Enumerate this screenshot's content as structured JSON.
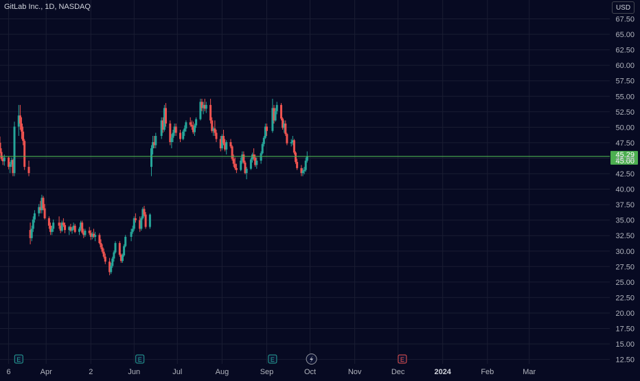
{
  "header": {
    "symbol_label": "GitLab Inc., 1D, NASDAQ"
  },
  "toolbar": {
    "currency_label": "USD"
  },
  "colors": {
    "background": "#070a22",
    "grid": "#1a1d33",
    "up": "#26a69a",
    "down": "#ef5350",
    "price_line": "#4caf50",
    "text": "#b2b5be",
    "earnings_marker": "#26a69a",
    "upcoming_earnings_marker": "#ef5350"
  },
  "chart_data": {
    "type": "candlestick",
    "y_axis": {
      "ticks": [
        "67.50",
        "65.00",
        "62.50",
        "60.00",
        "57.50",
        "55.00",
        "52.50",
        "50.00",
        "47.50",
        "45.00",
        "42.50",
        "40.00",
        "37.50",
        "35.00",
        "32.50",
        "30.00",
        "27.50",
        "25.00",
        "22.50",
        "20.00",
        "17.50",
        "15.00",
        "12.50"
      ],
      "range": [
        11.5,
        68.5
      ]
    },
    "x_axis": {
      "ticks": [
        "6",
        "Apr",
        "2",
        "Jun",
        "Jul",
        "Aug",
        "Sep",
        "Oct",
        "Nov",
        "Dec",
        "2024",
        "Feb",
        "Mar"
      ],
      "range": [
        "2023-02-28",
        "2024-03-25"
      ]
    },
    "price_labels": [
      "45.29",
      "45.00"
    ],
    "price_line_value": 45.29,
    "earnings_markers": [
      {
        "date": "2023-03-13",
        "label": "E"
      },
      {
        "date": "2023-06-05",
        "label": "E"
      },
      {
        "date": "2023-09-05",
        "label": "E"
      },
      {
        "date": "2023-12-04",
        "label": "E"
      }
    ],
    "dividend_marker": {
      "date": "2023-10-02",
      "icon": "lightning-icon"
    },
    "candles": [
      [
        "2023-02-28",
        47.5,
        48.5,
        45.8,
        46.0
      ],
      [
        "2023-03-01",
        46.0,
        46.6,
        44.6,
        44.9
      ],
      [
        "2023-03-02",
        44.9,
        45.4,
        43.9,
        44.5
      ],
      [
        "2023-03-03",
        44.5,
        45.6,
        43.8,
        45.1
      ],
      [
        "2023-03-06",
        45.1,
        45.3,
        43.2,
        43.6
      ],
      [
        "2023-03-07",
        43.6,
        44.4,
        42.6,
        44.0
      ],
      [
        "2023-03-08",
        44.0,
        45.1,
        43.6,
        44.7
      ],
      [
        "2023-03-09",
        44.7,
        44.9,
        42.1,
        42.6
      ],
      [
        "2023-03-10",
        42.6,
        50.9,
        42.1,
        50.1
      ],
      [
        "2023-03-13",
        50.1,
        53.6,
        48.6,
        51.9
      ],
      [
        "2023-03-14",
        51.9,
        53.6,
        49.6,
        50.6
      ],
      [
        "2023-03-15",
        50.6,
        51.6,
        48.1,
        49.3
      ],
      [
        "2023-03-16",
        49.3,
        50.1,
        47.1,
        47.8
      ],
      [
        "2023-03-17",
        47.8,
        48.1,
        43.1,
        43.6
      ],
      [
        "2023-03-20",
        43.6,
        44.6,
        42.1,
        42.6
      ],
      [
        "2023-03-21",
        33.4,
        34.6,
        31.1,
        32.1
      ],
      [
        "2023-03-22",
        32.1,
        34.1,
        31.6,
        33.6
      ],
      [
        "2023-03-23",
        33.6,
        35.6,
        33.1,
        35.1
      ],
      [
        "2023-03-24",
        35.1,
        36.6,
        34.6,
        36.1
      ],
      [
        "2023-03-27",
        36.1,
        37.6,
        35.6,
        37.1
      ],
      [
        "2023-03-28",
        37.1,
        38.1,
        36.1,
        36.6
      ],
      [
        "2023-03-29",
        36.6,
        39.1,
        36.1,
        38.6
      ],
      [
        "2023-03-30",
        38.6,
        38.9,
        36.6,
        36.9
      ],
      [
        "2023-03-31",
        36.9,
        37.6,
        35.1,
        35.3
      ],
      [
        "2023-04-03",
        35.3,
        35.6,
        33.6,
        34.1
      ],
      [
        "2023-04-04",
        34.1,
        34.6,
        32.6,
        33.1
      ],
      [
        "2023-04-05",
        33.1,
        34.1,
        32.6,
        33.6
      ],
      [
        "2023-04-06",
        33.6,
        35.1,
        33.1,
        34.6
      ],
      [
        "2023-04-10",
        34.6,
        35.6,
        33.6,
        34.1
      ],
      [
        "2023-04-11",
        34.1,
        34.6,
        32.9,
        33.3
      ],
      [
        "2023-04-12",
        33.3,
        34.9,
        33.1,
        34.6
      ],
      [
        "2023-04-13",
        34.6,
        35.3,
        33.9,
        34.2
      ],
      [
        "2023-04-14",
        34.2,
        34.6,
        32.9,
        33.4
      ],
      [
        "2023-04-17",
        33.4,
        34.1,
        32.6,
        33.9
      ],
      [
        "2023-04-18",
        33.9,
        34.4,
        33.1,
        33.3
      ],
      [
        "2023-04-19",
        33.3,
        33.9,
        32.8,
        33.6
      ],
      [
        "2023-04-20",
        33.6,
        34.6,
        33.4,
        34.1
      ],
      [
        "2023-04-21",
        34.1,
        34.4,
        32.9,
        33.1
      ],
      [
        "2023-04-24",
        33.1,
        33.9,
        32.6,
        33.6
      ],
      [
        "2023-04-25",
        33.6,
        34.9,
        33.3,
        34.6
      ],
      [
        "2023-04-26",
        34.6,
        34.9,
        32.8,
        33.0
      ],
      [
        "2023-04-27",
        33.0,
        33.6,
        32.1,
        32.6
      ],
      [
        "2023-04-28",
        32.6,
        33.6,
        32.3,
        33.3
      ],
      [
        "2023-05-01",
        33.3,
        33.9,
        32.6,
        32.9
      ],
      [
        "2023-05-02",
        32.9,
        33.4,
        31.8,
        32.3
      ],
      [
        "2023-05-03",
        32.3,
        33.1,
        31.9,
        32.8
      ],
      [
        "2023-05-04",
        32.8,
        33.6,
        32.1,
        32.3
      ],
      [
        "2023-05-05",
        32.3,
        33.1,
        31.6,
        32.6
      ],
      [
        "2023-05-08",
        32.6,
        32.9,
        31.1,
        31.3
      ],
      [
        "2023-05-09",
        31.3,
        31.9,
        30.3,
        30.6
      ],
      [
        "2023-05-10",
        30.6,
        31.1,
        29.6,
        29.9
      ],
      [
        "2023-05-11",
        29.9,
        30.4,
        28.8,
        29.1
      ],
      [
        "2023-05-12",
        29.1,
        29.6,
        27.9,
        28.3
      ],
      [
        "2023-05-15",
        28.3,
        28.9,
        26.1,
        26.6
      ],
      [
        "2023-05-16",
        26.6,
        28.1,
        26.3,
        27.6
      ],
      [
        "2023-05-17",
        27.6,
        29.1,
        27.3,
        28.8
      ],
      [
        "2023-05-18",
        28.8,
        30.1,
        28.3,
        29.8
      ],
      [
        "2023-05-19",
        29.8,
        31.6,
        29.6,
        31.3
      ],
      [
        "2023-05-22",
        31.3,
        31.6,
        29.1,
        29.4
      ],
      [
        "2023-05-23",
        29.4,
        29.6,
        28.1,
        28.4
      ],
      [
        "2023-05-24",
        28.4,
        29.6,
        28.1,
        29.3
      ],
      [
        "2023-05-25",
        29.3,
        31.1,
        29.1,
        30.8
      ],
      [
        "2023-05-26",
        30.8,
        32.6,
        30.6,
        32.3
      ],
      [
        "2023-05-30",
        32.3,
        33.6,
        31.6,
        33.1
      ],
      [
        "2023-05-31",
        33.1,
        34.1,
        32.8,
        33.6
      ],
      [
        "2023-06-01",
        33.6,
        35.6,
        33.3,
        35.3
      ],
      [
        "2023-06-02",
        35.3,
        36.1,
        34.6,
        35.0
      ],
      [
        "2023-06-05",
        35.0,
        35.6,
        33.1,
        33.6
      ],
      [
        "2023-06-06",
        33.6,
        35.6,
        33.3,
        35.3
      ],
      [
        "2023-06-07",
        35.3,
        37.1,
        35.1,
        36.8
      ],
      [
        "2023-06-08",
        36.8,
        37.3,
        35.6,
        35.9
      ],
      [
        "2023-06-09",
        35.9,
        36.3,
        33.6,
        33.9
      ],
      [
        "2023-06-12",
        33.9,
        36.1,
        33.6,
        35.9
      ],
      [
        "2023-06-13",
        43.6,
        47.1,
        42.1,
        46.6
      ],
      [
        "2023-06-14",
        46.6,
        48.6,
        45.6,
        47.6
      ],
      [
        "2023-06-15",
        47.6,
        48.6,
        46.6,
        47.1
      ],
      [
        "2023-06-16",
        47.1,
        49.1,
        46.6,
        48.6
      ],
      [
        "2023-06-20",
        48.6,
        51.6,
        48.1,
        51.1
      ],
      [
        "2023-06-21",
        51.1,
        51.6,
        49.1,
        49.6
      ],
      [
        "2023-06-22",
        49.6,
        53.6,
        49.3,
        53.1
      ],
      [
        "2023-06-23",
        53.1,
        53.9,
        50.1,
        50.6
      ],
      [
        "2023-06-26",
        50.6,
        51.1,
        47.1,
        47.6
      ],
      [
        "2023-06-27",
        47.6,
        48.9,
        46.6,
        48.3
      ],
      [
        "2023-06-28",
        48.3,
        49.6,
        47.6,
        49.1
      ],
      [
        "2023-06-29",
        49.1,
        50.6,
        48.6,
        50.1
      ],
      [
        "2023-06-30",
        50.1,
        50.6,
        48.6,
        49.1
      ],
      [
        "2023-07-03",
        49.1,
        49.6,
        47.6,
        48.1
      ],
      [
        "2023-07-05",
        48.1,
        49.6,
        47.9,
        49.3
      ],
      [
        "2023-07-06",
        49.3,
        50.3,
        48.6,
        49.8
      ],
      [
        "2023-07-07",
        49.8,
        51.1,
        49.3,
        50.8
      ],
      [
        "2023-07-10",
        50.8,
        51.6,
        50.1,
        50.4
      ],
      [
        "2023-07-11",
        50.4,
        51.1,
        49.6,
        50.1
      ],
      [
        "2023-07-12",
        50.1,
        50.9,
        48.9,
        49.2
      ],
      [
        "2023-07-13",
        49.2,
        50.6,
        48.6,
        50.3
      ],
      [
        "2023-07-14",
        50.3,
        51.6,
        49.9,
        51.3
      ],
      [
        "2023-07-17",
        51.3,
        54.6,
        51.1,
        54.1
      ],
      [
        "2023-07-18",
        54.1,
        54.6,
        52.6,
        53.1
      ],
      [
        "2023-07-19",
        53.1,
        54.1,
        52.1,
        53.6
      ],
      [
        "2023-07-20",
        53.6,
        54.6,
        52.6,
        53.0
      ],
      [
        "2023-07-21",
        53.0,
        54.1,
        52.3,
        53.6
      ],
      [
        "2023-07-24",
        53.6,
        54.6,
        50.6,
        51.1
      ],
      [
        "2023-07-25",
        51.1,
        51.6,
        49.1,
        49.4
      ],
      [
        "2023-07-26",
        49.4,
        50.1,
        48.6,
        49.8
      ],
      [
        "2023-07-27",
        49.8,
        51.1,
        48.6,
        49.1
      ],
      [
        "2023-07-28",
        49.1,
        49.6,
        47.6,
        48.1
      ],
      [
        "2023-07-31",
        48.1,
        48.6,
        46.1,
        46.6
      ],
      [
        "2023-08-01",
        46.6,
        48.9,
        46.3,
        48.6
      ],
      [
        "2023-08-02",
        48.6,
        49.6,
        47.1,
        47.4
      ],
      [
        "2023-08-03",
        47.4,
        48.1,
        46.1,
        46.4
      ],
      [
        "2023-08-04",
        46.4,
        47.9,
        45.6,
        47.6
      ],
      [
        "2023-08-07",
        47.6,
        48.1,
        46.6,
        46.9
      ],
      [
        "2023-08-08",
        46.9,
        47.1,
        44.6,
        44.9
      ],
      [
        "2023-08-09",
        44.9,
        45.6,
        43.6,
        44.1
      ],
      [
        "2023-08-10",
        44.1,
        45.1,
        43.1,
        43.4
      ],
      [
        "2023-08-11",
        43.4,
        44.1,
        42.6,
        43.1
      ],
      [
        "2023-08-14",
        43.1,
        45.1,
        42.9,
        44.6
      ],
      [
        "2023-08-15",
        44.6,
        46.1,
        44.1,
        45.6
      ],
      [
        "2023-08-16",
        45.6,
        46.1,
        44.1,
        44.3
      ],
      [
        "2023-08-17",
        44.3,
        44.6,
        42.4,
        42.6
      ],
      [
        "2023-08-18",
        42.6,
        43.6,
        41.6,
        43.3
      ],
      [
        "2023-08-21",
        43.3,
        45.1,
        43.1,
        44.8
      ],
      [
        "2023-08-22",
        44.8,
        45.9,
        44.3,
        45.6
      ],
      [
        "2023-08-23",
        45.6,
        46.6,
        44.6,
        45.1
      ],
      [
        "2023-08-24",
        45.1,
        45.6,
        43.6,
        43.9
      ],
      [
        "2023-08-25",
        43.9,
        45.1,
        43.3,
        44.6
      ],
      [
        "2023-08-28",
        44.6,
        46.1,
        44.1,
        45.8
      ],
      [
        "2023-08-29",
        45.8,
        47.6,
        45.6,
        47.3
      ],
      [
        "2023-08-30",
        47.3,
        48.6,
        46.9,
        48.3
      ],
      [
        "2023-08-31",
        48.3,
        50.6,
        48.1,
        50.1
      ],
      [
        "2023-09-01",
        50.1,
        50.6,
        48.6,
        49.4
      ],
      [
        "2023-09-05",
        49.4,
        54.6,
        49.1,
        53.1
      ],
      [
        "2023-09-06",
        53.1,
        53.6,
        50.6,
        51.1
      ],
      [
        "2023-09-07",
        51.1,
        53.1,
        50.9,
        52.6
      ],
      [
        "2023-09-08",
        52.6,
        54.1,
        52.1,
        53.6
      ],
      [
        "2023-09-11",
        53.6,
        53.9,
        51.1,
        51.4
      ],
      [
        "2023-09-12",
        51.4,
        51.6,
        49.6,
        49.9
      ],
      [
        "2023-09-13",
        49.9,
        51.1,
        49.1,
        50.6
      ],
      [
        "2023-09-14",
        50.6,
        51.1,
        48.6,
        48.9
      ],
      [
        "2023-09-15",
        48.9,
        49.1,
        47.1,
        47.4
      ],
      [
        "2023-09-18",
        47.4,
        48.1,
        46.9,
        47.6
      ],
      [
        "2023-09-19",
        47.6,
        48.6,
        47.1,
        47.9
      ],
      [
        "2023-09-20",
        47.9,
        48.1,
        45.6,
        45.9
      ],
      [
        "2023-09-21",
        45.9,
        46.1,
        44.1,
        44.4
      ],
      [
        "2023-09-22",
        44.4,
        44.9,
        43.1,
        43.4
      ],
      [
        "2023-09-25",
        43.4,
        43.9,
        42.1,
        42.6
      ],
      [
        "2023-09-26",
        42.6,
        43.4,
        42.1,
        42.9
      ],
      [
        "2023-09-27",
        42.9,
        43.6,
        42.4,
        43.1
      ],
      [
        "2023-09-28",
        43.1,
        45.1,
        42.8,
        44.6
      ],
      [
        "2023-09-29",
        44.6,
        46.1,
        44.3,
        45.29
      ]
    ]
  }
}
